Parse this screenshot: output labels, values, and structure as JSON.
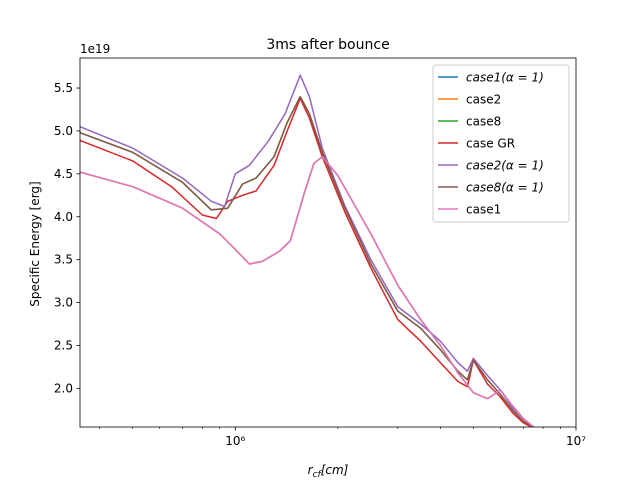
{
  "chart_data": {
    "type": "line",
    "title": "3ms after bounce",
    "xlabel": "r_cf[cm]",
    "ylabel": "Specific Energy [erg]",
    "y_offset_label": "1e19",
    "xscale": "log",
    "xlim": [
      350000,
      10000000
    ],
    "ylim": [
      1.55,
      5.85
    ],
    "y_unit_multiplier": 1e+19,
    "grid": false,
    "legend_position": "top-right",
    "x_ticks": [
      {
        "value": 1000000,
        "label": "10⁶"
      },
      {
        "value": 10000000,
        "label": "10⁷"
      }
    ],
    "y_ticks": [
      {
        "value": 2.0,
        "label": "2.0"
      },
      {
        "value": 2.5,
        "label": "2.5"
      },
      {
        "value": 3.0,
        "label": "3.0"
      },
      {
        "value": 3.5,
        "label": "3.5"
      },
      {
        "value": 4.0,
        "label": "4.0"
      },
      {
        "value": 4.5,
        "label": "4.5"
      },
      {
        "value": 5.0,
        "label": "5.0"
      },
      {
        "value": 5.5,
        "label": "5.5"
      }
    ],
    "series": [
      {
        "name": "case1(α = 1)",
        "italic": true,
        "color": "#1f77b4",
        "x": [
          350000,
          500000,
          700000,
          900000,
          1000000,
          1100000,
          1200000,
          1350000,
          1450000,
          1600000,
          1700000,
          1800000,
          2000000,
          2500000,
          3000000,
          3500000,
          4000000,
          4500000,
          5000000,
          5500000,
          6000000,
          6500000,
          7000000,
          7500000
        ],
        "y": [
          4.52,
          4.35,
          4.1,
          3.8,
          3.62,
          3.45,
          3.48,
          3.6,
          3.72,
          4.3,
          4.62,
          4.7,
          4.48,
          3.8,
          3.2,
          2.8,
          2.5,
          2.18,
          1.95,
          1.88,
          1.98,
          1.8,
          1.65,
          1.55
        ]
      },
      {
        "name": "case2",
        "italic": false,
        "color": "#ff7f0e",
        "x": [
          350000,
          500000,
          700000,
          900000,
          1000000,
          1100000,
          1200000,
          1350000,
          1450000,
          1600000,
          1700000,
          1800000,
          2000000,
          2500000,
          3000000,
          3500000,
          4000000,
          4500000,
          5000000,
          5500000,
          6000000,
          6500000,
          7000000,
          7500000
        ],
        "y": [
          4.52,
          4.35,
          4.1,
          3.8,
          3.62,
          3.45,
          3.48,
          3.6,
          3.72,
          4.3,
          4.62,
          4.7,
          4.48,
          3.8,
          3.2,
          2.8,
          2.5,
          2.18,
          1.95,
          1.88,
          1.98,
          1.8,
          1.65,
          1.55
        ]
      },
      {
        "name": "case8",
        "italic": false,
        "color": "#2ca02c",
        "x": [
          350000,
          500000,
          700000,
          850000,
          950000,
          1050000,
          1150000,
          1300000,
          1420000,
          1550000,
          1650000,
          1800000,
          2100000,
          2500000,
          3000000,
          3500000,
          4000000,
          4500000,
          4800000,
          5000000,
          5500000,
          6000000,
          6500000,
          7000000,
          7500000
        ],
        "y": [
          4.98,
          4.75,
          4.4,
          4.08,
          4.1,
          4.38,
          4.45,
          4.7,
          5.1,
          5.4,
          5.2,
          4.75,
          4.1,
          3.45,
          2.9,
          2.7,
          2.45,
          2.2,
          2.1,
          2.33,
          2.1,
          1.93,
          1.75,
          1.62,
          1.55
        ]
      },
      {
        "name": "case GR",
        "italic": false,
        "color": "#d62728",
        "x": [
          350000,
          500000,
          650000,
          800000,
          880000,
          950000,
          1050000,
          1150000,
          1300000,
          1420000,
          1550000,
          1650000,
          1800000,
          2100000,
          2500000,
          3000000,
          3500000,
          4000000,
          4500000,
          4800000,
          5000000,
          5500000,
          6000000,
          6500000,
          7000000,
          7400000
        ],
        "y": [
          4.89,
          4.65,
          4.35,
          4.02,
          3.98,
          4.18,
          4.25,
          4.3,
          4.6,
          5.0,
          5.38,
          5.15,
          4.7,
          4.05,
          3.4,
          2.8,
          2.55,
          2.3,
          2.08,
          2.02,
          2.33,
          2.05,
          1.9,
          1.72,
          1.6,
          1.55
        ]
      },
      {
        "name": "case2(α = 1)",
        "italic": true,
        "color": "#9467bd",
        "x": [
          350000,
          500000,
          700000,
          850000,
          930000,
          1000000,
          1100000,
          1250000,
          1400000,
          1550000,
          1650000,
          1800000,
          2100000,
          2500000,
          3000000,
          3500000,
          4000000,
          4500000,
          4800000,
          5000000,
          5500000,
          6000000,
          6500000,
          7000000,
          7500000
        ],
        "y": [
          5.05,
          4.8,
          4.45,
          4.18,
          4.12,
          4.5,
          4.6,
          4.88,
          5.2,
          5.65,
          5.4,
          4.8,
          4.12,
          3.5,
          2.95,
          2.75,
          2.55,
          2.3,
          2.2,
          2.35,
          2.15,
          1.98,
          1.78,
          1.65,
          1.55
        ]
      },
      {
        "name": "case8(α = 1)",
        "italic": true,
        "color": "#8c564b",
        "x": [
          350000,
          500000,
          700000,
          850000,
          950000,
          1050000,
          1150000,
          1300000,
          1420000,
          1550000,
          1650000,
          1800000,
          2100000,
          2500000,
          3000000,
          3500000,
          4000000,
          4500000,
          4800000,
          5000000,
          5500000,
          6000000,
          6500000,
          7000000,
          7500000
        ],
        "y": [
          4.98,
          4.75,
          4.4,
          4.08,
          4.1,
          4.38,
          4.45,
          4.7,
          5.1,
          5.4,
          5.2,
          4.75,
          4.1,
          3.45,
          2.9,
          2.7,
          2.45,
          2.2,
          2.1,
          2.33,
          2.1,
          1.93,
          1.75,
          1.62,
          1.55
        ]
      },
      {
        "name": "case1",
        "italic": false,
        "color": "#e377c2",
        "x": [
          350000,
          500000,
          700000,
          900000,
          1000000,
          1100000,
          1200000,
          1350000,
          1450000,
          1600000,
          1700000,
          1800000,
          2000000,
          2500000,
          3000000,
          3500000,
          4000000,
          4500000,
          5000000,
          5500000,
          6000000,
          6500000,
          7000000,
          7500000
        ],
        "y": [
          4.52,
          4.35,
          4.1,
          3.8,
          3.62,
          3.45,
          3.48,
          3.6,
          3.72,
          4.3,
          4.62,
          4.7,
          4.48,
          3.8,
          3.2,
          2.8,
          2.5,
          2.18,
          1.95,
          1.88,
          1.98,
          1.8,
          1.65,
          1.55
        ]
      }
    ]
  }
}
